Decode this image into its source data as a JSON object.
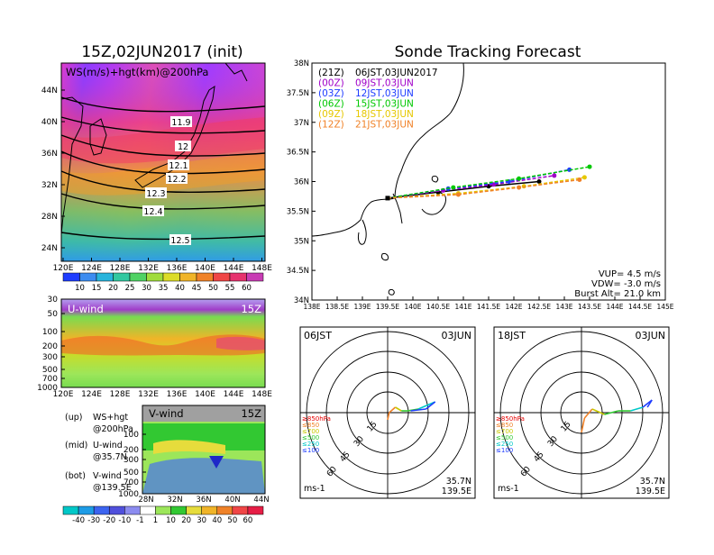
{
  "left_title": "15Z,02JUN2017 (init)",
  "right_title": "Sonde Tracking Forecast",
  "map_panel": {
    "label": "WS(m/s)+hgt(km)@200hPa",
    "lat_ticks": [
      "44N",
      "40N",
      "36N",
      "32N",
      "28N",
      "24N"
    ],
    "lon_ticks": [
      "120E",
      "124E",
      "128E",
      "132E",
      "136E",
      "140E",
      "144E",
      "148E"
    ],
    "contour_labels": [
      "11.9",
      "12",
      "12.1",
      "12.2",
      "12.3",
      "12.4",
      "12.5"
    ],
    "colorbar_labels": [
      "10",
      "15",
      "20",
      "25",
      "30",
      "35",
      "40",
      "45",
      "50",
      "55",
      "60"
    ]
  },
  "u_panel": {
    "label": "U-wind",
    "time": "15Z",
    "p_ticks": [
      "30",
      "50",
      "100",
      "200",
      "300",
      "500",
      "700",
      "1000"
    ],
    "lon_ticks": [
      "120E",
      "124E",
      "128E",
      "132E",
      "136E",
      "140E",
      "144E",
      "148E"
    ]
  },
  "v_panel": {
    "label": "V-wind",
    "time": "15Z",
    "p_ticks": [
      "100",
      "200",
      "300",
      "500",
      "700",
      "1000"
    ],
    "lat_ticks": [
      "28N",
      "32N",
      "36N",
      "40N",
      "44N"
    ]
  },
  "legend_text": [
    {
      "tag": "(up)",
      "text": "WS+hgt"
    },
    {
      "tag": "",
      "text": "@200hPa"
    },
    {
      "tag": "(mid)",
      "text": "U-wind"
    },
    {
      "tag": "",
      "text": "@35.7N"
    },
    {
      "tag": "(bot)",
      "text": "V-wind"
    },
    {
      "tag": "",
      "text": "@139.5E"
    }
  ],
  "bottom_colorbar_labels": [
    "-40",
    "-30",
    "-20",
    "-10",
    "-1",
    "1",
    "10",
    "20",
    "30",
    "40",
    "50",
    "60"
  ],
  "track_chart": {
    "lat_ticks": [
      "38N",
      "37.5N",
      "37N",
      "36.5N",
      "36N",
      "35.5N",
      "35N",
      "34.5N",
      "34N"
    ],
    "lon_ticks": [
      "138E",
      "138.5E",
      "139E",
      "139.5E",
      "140E",
      "140.5E",
      "141E",
      "141.5E",
      "142E",
      "142.5E",
      "143E",
      "143.5E",
      "144E",
      "144.5E",
      "145E"
    ],
    "xlim": [
      138,
      145
    ],
    "ylim": [
      34,
      38
    ],
    "legend": [
      {
        "utc": "(21Z)",
        "jst": "06JST,03JUN2017",
        "color": "#000000"
      },
      {
        "utc": "(00Z)",
        "jst": "09JST,03JUN",
        "color": "#a000c8"
      },
      {
        "utc": "(03Z)",
        "jst": "12JST,03JUN",
        "color": "#1e3cff"
      },
      {
        "utc": "(06Z)",
        "jst": "15JST,03JUN",
        "color": "#00c800"
      },
      {
        "utc": "(09Z)",
        "jst": "18JST,03JUN",
        "color": "#e6c800"
      },
      {
        "utc": "(12Z)",
        "jst": "21JST,03JUN",
        "color": "#f08228"
      }
    ],
    "info": [
      "VUP= 4.5 m/s",
      "VDW= -3.0 m/s",
      "Burst Alt= 21.0 km"
    ]
  },
  "chart_data": [
    {
      "type": "line",
      "xlabel": "",
      "ylabel": "",
      "xlim": [
        138,
        145
      ],
      "ylim": [
        34,
        38
      ],
      "series": [
        {
          "name": "(21Z) 06JST,03JUN2017",
          "color": "#000000",
          "x": [
            139.5,
            140.5,
            141.5,
            142.5
          ],
          "y": [
            35.72,
            35.82,
            35.92,
            36.0
          ]
        },
        {
          "name": "(00Z) 09JST,03JUN",
          "color": "#a000c8",
          "x": [
            139.5,
            140.6,
            141.6,
            142.8
          ],
          "y": [
            35.72,
            35.85,
            35.95,
            36.1
          ]
        },
        {
          "name": "(03Z) 12JST,03JUN",
          "color": "#1e3cff",
          "x": [
            139.5,
            140.7,
            141.9,
            143.1
          ],
          "y": [
            35.72,
            35.88,
            36.0,
            36.2
          ]
        },
        {
          "name": "(06Z) 15JST,03JUN",
          "color": "#00c800",
          "x": [
            139.5,
            140.8,
            142.1,
            143.5
          ],
          "y": [
            35.72,
            35.9,
            36.05,
            36.25
          ]
        },
        {
          "name": "(09Z) 18JST,03JUN",
          "color": "#e6c800",
          "x": [
            139.5,
            140.9,
            142.2,
            143.4
          ],
          "y": [
            35.72,
            35.8,
            35.92,
            36.07
          ]
        },
        {
          "name": "(12Z) 21JST,03JUN",
          "color": "#f08228",
          "x": [
            139.5,
            140.9,
            142.1,
            143.3
          ],
          "y": [
            35.72,
            35.78,
            35.9,
            36.03
          ]
        }
      ]
    }
  ],
  "hodographs": [
    {
      "time": "06JST",
      "date": "03JUN",
      "loc": [
        "35.7N",
        "139.5E"
      ],
      "unit": "ms-1",
      "levels": [
        "≥850hPa",
        "≤850",
        "≤700",
        "≤500",
        "≤250",
        "≤100"
      ],
      "level_colors": [
        "#e60000",
        "#f08228",
        "#c8c800",
        "#32c832",
        "#00c8c8",
        "#1e3cff"
      ],
      "ring_labels": [
        "15",
        "30",
        "45",
        "60"
      ]
    },
    {
      "time": "18JST",
      "date": "03JUN",
      "loc": [
        "35.7N",
        "139.5E"
      ],
      "unit": "ms-1",
      "levels": [
        "≥850hPa",
        "≤850",
        "≤700",
        "≤500",
        "≤250",
        "≤100"
      ],
      "level_colors": [
        "#e60000",
        "#f08228",
        "#c8c800",
        "#32c832",
        "#00c8c8",
        "#1e3cff"
      ],
      "ring_labels": [
        "15",
        "30",
        "45",
        "60"
      ]
    }
  ]
}
